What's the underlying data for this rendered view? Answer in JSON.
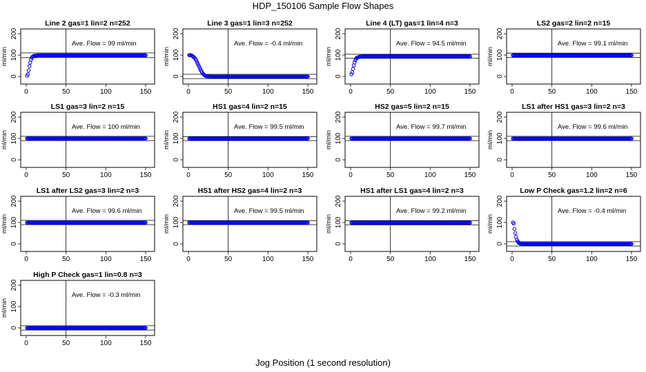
{
  "page": {
    "title": "HDP_150106  Sample Flow Shapes",
    "xlabel": "Jog Position (1 second resolution)"
  },
  "colors": {
    "points": "#0000ee",
    "axes": "#000000"
  },
  "chart_data": [
    {
      "type": "scatter",
      "title": "Line 2 gas=1 lin=2 n=252",
      "annotation": "Ave. Flow =  99  ml/min",
      "ylabel": "ml/min",
      "xlim": [
        0,
        150
      ],
      "ylim": [
        -20,
        210
      ],
      "xticks": [
        0,
        50,
        100,
        150
      ],
      "yticks": [
        0,
        100,
        200
      ],
      "hlines": [
        88,
        110
      ],
      "vline": 50,
      "shape": "rise",
      "plateau": 99,
      "series": [
        {
          "x": [
            1,
            2,
            3,
            4,
            5,
            6,
            7,
            8,
            10,
            12,
            15,
            20,
            30,
            50,
            75,
            100,
            125,
            150
          ],
          "y": [
            3,
            10,
            28,
            48,
            65,
            79,
            88,
            93,
            97,
            98,
            99,
            99,
            99,
            99,
            99,
            99,
            99,
            99
          ]
        }
      ]
    },
    {
      "type": "scatter",
      "title": "Line 3 gas=1 lin=3 n=252",
      "annotation": "Ave. Flow =  -0.4  ml/min",
      "ylabel": "ml/min",
      "xlim": [
        0,
        150
      ],
      "ylim": [
        -20,
        210
      ],
      "xticks": [
        0,
        50,
        100,
        150
      ],
      "yticks": [
        0,
        100,
        200
      ],
      "hlines": [
        -10,
        10
      ],
      "vline": 50,
      "shape": "decay",
      "plateau": -0.4,
      "series": [
        {
          "x": [
            1,
            3,
            5,
            8,
            10,
            12,
            14,
            16,
            18,
            20,
            22,
            25,
            30,
            40,
            60,
            100,
            150
          ],
          "y": [
            100,
            100,
            96,
            86,
            74,
            58,
            42,
            26,
            14,
            6,
            2,
            0,
            -0.4,
            -0.4,
            -0.4,
            -0.4,
            -0.4
          ]
        }
      ]
    },
    {
      "type": "scatter",
      "title": "Line 4 (LT) gas=1 lin=4 n=3",
      "annotation": "Ave. Flow =  94.5  ml/min",
      "ylabel": "ml/min",
      "xlim": [
        0,
        150
      ],
      "ylim": [
        -20,
        210
      ],
      "xticks": [
        0,
        50,
        100,
        150
      ],
      "yticks": [
        0,
        100,
        200
      ],
      "hlines": [
        85,
        104
      ],
      "vline": 50,
      "shape": "rise",
      "plateau": 94.5,
      "series": [
        {
          "x": [
            1,
            2,
            3,
            4,
            5,
            6,
            7,
            8,
            10,
            12,
            15,
            20,
            30,
            50,
            75,
            100,
            125,
            150
          ],
          "y": [
            10,
            20,
            35,
            52,
            66,
            76,
            84,
            88,
            91,
            93,
            94,
            94.5,
            94.5,
            94.5,
            94.5,
            94.5,
            94.5,
            94.5
          ]
        }
      ]
    },
    {
      "type": "scatter",
      "title": "LS2 gas=2 lin=2 n=15",
      "annotation": "Ave. Flow =  99.1  ml/min",
      "ylabel": "ml/min",
      "xlim": [
        0,
        150
      ],
      "ylim": [
        -20,
        210
      ],
      "xticks": [
        0,
        50,
        100,
        150
      ],
      "yticks": [
        0,
        100,
        200
      ],
      "hlines": [
        89,
        109
      ],
      "vline": 50,
      "shape": "flat",
      "plateau": 99.1,
      "series": [
        {
          "x": [
            1,
            150
          ],
          "y": [
            99.1,
            99.1
          ]
        }
      ]
    },
    {
      "type": "scatter",
      "title": "LS1 gas=3 lin=2 n=15",
      "annotation": "Ave. Flow =  100  ml/min",
      "ylabel": "ml/min",
      "xlim": [
        0,
        150
      ],
      "ylim": [
        -20,
        210
      ],
      "xticks": [
        0,
        50,
        100,
        150
      ],
      "yticks": [
        0,
        100,
        200
      ],
      "hlines": [
        90,
        110
      ],
      "vline": 50,
      "shape": "flat",
      "plateau": 100,
      "series": [
        {
          "x": [
            1,
            150
          ],
          "y": [
            100,
            100
          ]
        }
      ]
    },
    {
      "type": "scatter",
      "title": "HS1 gas=4 lin=2 n=15",
      "annotation": "Ave. Flow =  99.5  ml/min",
      "ylabel": "ml/min",
      "xlim": [
        0,
        150
      ],
      "ylim": [
        -20,
        210
      ],
      "xticks": [
        0,
        50,
        100,
        150
      ],
      "yticks": [
        0,
        100,
        200
      ],
      "hlines": [
        90,
        109
      ],
      "vline": 50,
      "shape": "flat",
      "plateau": 99.5,
      "series": [
        {
          "x": [
            1,
            150
          ],
          "y": [
            99.5,
            99.5
          ]
        }
      ]
    },
    {
      "type": "scatter",
      "title": "HS2 gas=5 lin=2 n=15",
      "annotation": "Ave. Flow =  99.7  ml/min",
      "ylabel": "ml/min",
      "xlim": [
        0,
        150
      ],
      "ylim": [
        -20,
        210
      ],
      "xticks": [
        0,
        50,
        100,
        150
      ],
      "yticks": [
        0,
        100,
        200
      ],
      "hlines": [
        90,
        110
      ],
      "vline": 50,
      "shape": "flat",
      "plateau": 99.7,
      "series": [
        {
          "x": [
            1,
            150
          ],
          "y": [
            99.7,
            99.7
          ]
        }
      ]
    },
    {
      "type": "scatter",
      "title": "LS1 after HS1 gas=3 lin=2 n=3",
      "annotation": "Ave. Flow =  99.6  ml/min",
      "ylabel": "ml/min",
      "xlim": [
        0,
        150
      ],
      "ylim": [
        -20,
        210
      ],
      "xticks": [
        0,
        50,
        100,
        150
      ],
      "yticks": [
        0,
        100,
        200
      ],
      "hlines": [
        90,
        110
      ],
      "vline": 50,
      "shape": "flat",
      "plateau": 99.6,
      "series": [
        {
          "x": [
            1,
            150
          ],
          "y": [
            99.6,
            99.6
          ]
        }
      ]
    },
    {
      "type": "scatter",
      "title": "LS1 after LS2 gas=3 lin=2 n=3",
      "annotation": "Ave. Flow =  99.6  ml/min",
      "ylabel": "ml/min",
      "xlim": [
        0,
        150
      ],
      "ylim": [
        -20,
        210
      ],
      "xticks": [
        0,
        50,
        100,
        150
      ],
      "yticks": [
        0,
        100,
        200
      ],
      "hlines": [
        90,
        110
      ],
      "vline": 50,
      "shape": "flat",
      "plateau": 99.6,
      "series": [
        {
          "x": [
            1,
            150
          ],
          "y": [
            99.6,
            99.6
          ]
        }
      ]
    },
    {
      "type": "scatter",
      "title": "HS1 after HS2 gas=4 lin=2 n=3",
      "annotation": "Ave. Flow =  99.5  ml/min",
      "ylabel": "ml/min",
      "xlim": [
        0,
        150
      ],
      "ylim": [
        -20,
        210
      ],
      "xticks": [
        0,
        50,
        100,
        150
      ],
      "yticks": [
        0,
        100,
        200
      ],
      "hlines": [
        90,
        109
      ],
      "vline": 50,
      "shape": "flat",
      "plateau": 99.5,
      "series": [
        {
          "x": [
            1,
            150
          ],
          "y": [
            99.5,
            99.5
          ]
        }
      ]
    },
    {
      "type": "scatter",
      "title": "HS1 after LS1 gas=4 lin=2 n=3",
      "annotation": "Ave. Flow =  99.2  ml/min",
      "ylabel": "ml/min",
      "xlim": [
        0,
        150
      ],
      "ylim": [
        -20,
        210
      ],
      "xticks": [
        0,
        50,
        100,
        150
      ],
      "yticks": [
        0,
        100,
        200
      ],
      "hlines": [
        89,
        109
      ],
      "vline": 50,
      "shape": "flat",
      "plateau": 99.2,
      "series": [
        {
          "x": [
            1,
            150
          ],
          "y": [
            99.2,
            99.2
          ]
        }
      ]
    },
    {
      "type": "scatter",
      "title": "Low P Check gas=1.2 lin=2 n=6",
      "annotation": "Ave. Flow =  -0.4  ml/min",
      "ylabel": "ml/min",
      "xlim": [
        0,
        150
      ],
      "ylim": [
        -20,
        210
      ],
      "xticks": [
        0,
        50,
        100,
        150
      ],
      "yticks": [
        0,
        100,
        200
      ],
      "hlines": [
        -10,
        10
      ],
      "vline": 50,
      "shape": "decay",
      "plateau": -0.4,
      "series": [
        {
          "x": [
            1,
            2,
            3,
            4,
            5,
            6,
            7,
            8,
            9,
            10,
            12,
            15,
            20,
            30,
            60,
            100,
            150
          ],
          "y": [
            100,
            95,
            70,
            50,
            32,
            20,
            12,
            6,
            3,
            1,
            0,
            -0.4,
            -0.4,
            -0.4,
            -0.4,
            -0.4,
            -0.4
          ]
        }
      ]
    },
    {
      "type": "scatter",
      "title": "High P Check gas=1 lin=0.8 n=3",
      "annotation": "Ave. Flow =  -0.3  ml/min",
      "ylabel": "ml/min",
      "xlim": [
        0,
        150
      ],
      "ylim": [
        -20,
        210
      ],
      "xticks": [
        0,
        50,
        100,
        150
      ],
      "yticks": [
        0,
        100,
        200
      ],
      "hlines": [
        -10,
        10
      ],
      "vline": 50,
      "shape": "flat",
      "plateau": -0.3,
      "series": [
        {
          "x": [
            1,
            150
          ],
          "y": [
            -0.3,
            -0.3
          ]
        }
      ]
    }
  ]
}
